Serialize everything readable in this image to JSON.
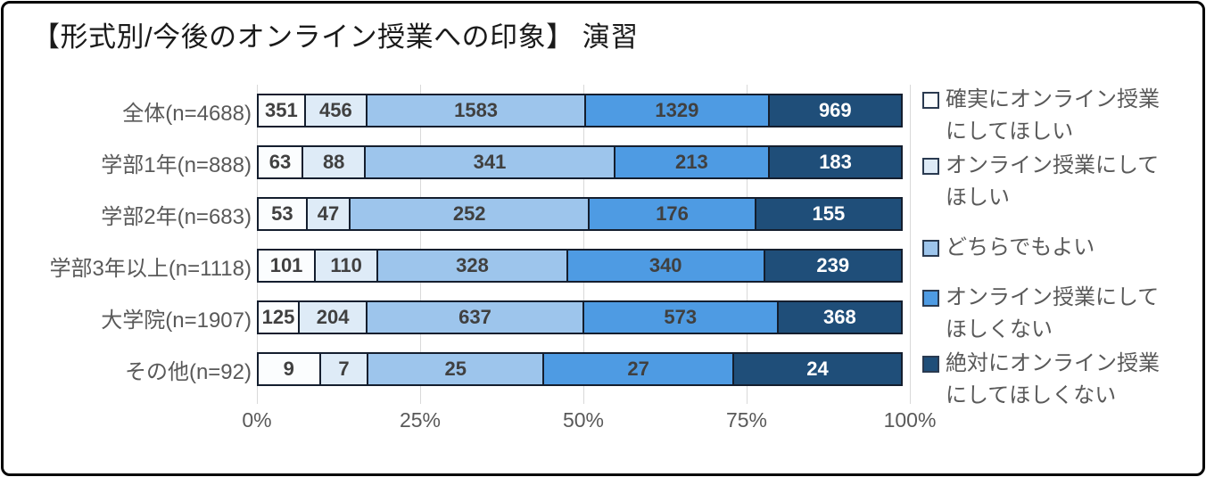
{
  "title": "【形式別/今後のオンライン授業への印象】 演習",
  "chart_data": {
    "type": "bar",
    "variant": "horizontal-stacked-100pct",
    "title": "【形式別/今後のオンライン授業への印象】 演習",
    "categories": [
      "全体(n=4688)",
      "学部1年(n=888)",
      "学部2年(n=683)",
      "学部3年以上(n=1118)",
      "大学院(n=1907)",
      "その他(n=92)"
    ],
    "series": [
      {
        "name": "確実にオンライン授業にしてほしい",
        "color": "#FBFDFE",
        "text_color": "#404040",
        "values": [
          351,
          63,
          53,
          101,
          125,
          9
        ]
      },
      {
        "name": "オンライン授業にしてほしい",
        "color": "#DEEBF7",
        "text_color": "#404040",
        "values": [
          456,
          88,
          47,
          110,
          204,
          7
        ]
      },
      {
        "name": "どちらでもよい",
        "color": "#9DC5EC",
        "text_color": "#404040",
        "values": [
          1583,
          341,
          252,
          328,
          637,
          25
        ]
      },
      {
        "name": "オンライン授業にしてほしくない",
        "color": "#4E9BE3",
        "text_color": "#404040",
        "values": [
          1329,
          213,
          176,
          340,
          573,
          27
        ]
      },
      {
        "name": "絶対にオンライン授業にしてほしくない",
        "color": "#1F4E79",
        "text_color": "#FFFFFF",
        "values": [
          969,
          183,
          155,
          239,
          368,
          24
        ]
      }
    ],
    "x_ticks": [
      "0%",
      "25%",
      "50%",
      "75%",
      "100%"
    ],
    "xlim": [
      0,
      100
    ],
    "grid": true,
    "legend_position": "right"
  },
  "colors": {
    "frame_border": "#000000",
    "gridline": "#D9D9D9",
    "axis_text": "#595959",
    "segment_border": "#141E2E",
    "title_text": "#1A1A1A"
  }
}
